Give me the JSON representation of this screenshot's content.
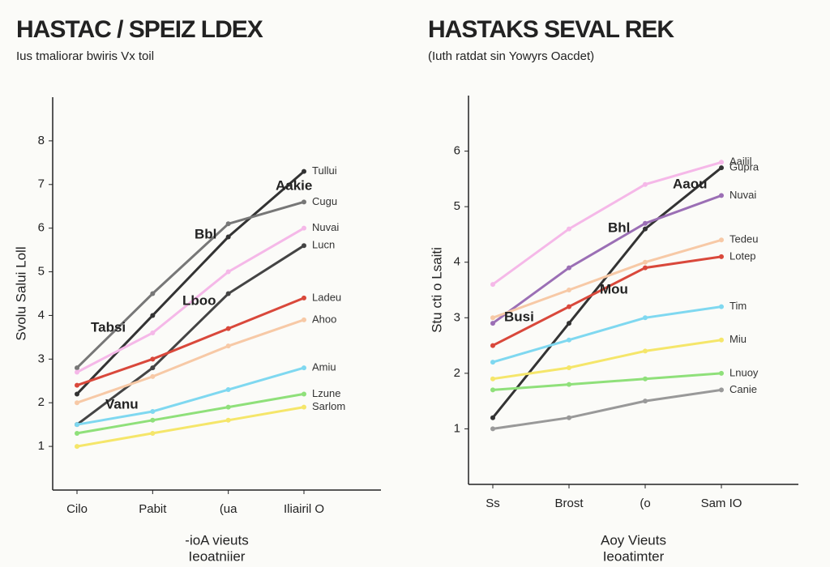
{
  "chart_data": [
    {
      "type": "line",
      "title": "HASTAC / SPEIZ LDEX",
      "subtitle": "Ius tmaliorar bwiris Vx toil",
      "y_label": "Svolu Salui Loll",
      "x_label": "Ieoatniier",
      "legend_text": "-ioA vieuts",
      "categories": [
        "Cilo",
        "Pabit",
        "(ua",
        "Iliairil O"
      ],
      "ylim": [
        0,
        9
      ],
      "yticks": [
        1,
        2,
        3,
        4,
        5,
        6,
        7,
        8
      ],
      "annotations": [
        "Aakie",
        "Bbl",
        "Lboo",
        "Tabsi",
        "Vanu"
      ],
      "series": [
        {
          "name": "Tullui",
          "color": "#333333",
          "values": [
            2.2,
            4.0,
            5.8,
            7.3
          ]
        },
        {
          "name": "Cugu",
          "color": "#777777",
          "values": [
            2.8,
            4.5,
            6.1,
            6.6
          ]
        },
        {
          "name": "Nuvai",
          "color": "#f5b8e8",
          "values": [
            2.7,
            3.6,
            5.0,
            6.0
          ]
        },
        {
          "name": "Lucn",
          "color": "#444444",
          "values": [
            1.5,
            2.8,
            4.5,
            5.6
          ]
        },
        {
          "name": "Ladeu",
          "color": "#d9483b",
          "values": [
            2.4,
            3.0,
            3.7,
            4.4
          ]
        },
        {
          "name": "Ahoo",
          "color": "#f7c9a6",
          "values": [
            2.0,
            2.6,
            3.3,
            3.9
          ]
        },
        {
          "name": "Amiu",
          "color": "#7fd8f0",
          "values": [
            1.5,
            1.8,
            2.3,
            2.8
          ]
        },
        {
          "name": "Lzune",
          "color": "#8fe07a",
          "values": [
            1.3,
            1.6,
            1.9,
            2.2
          ]
        },
        {
          "name": "Sarlom",
          "color": "#f5e66a",
          "values": [
            1.0,
            1.3,
            1.6,
            1.9
          ]
        }
      ]
    },
    {
      "type": "line",
      "title": "HASTAKS SEVAL REK",
      "subtitle": "(Iuth ratdat sin Yowyrs Oacdet)",
      "y_label": "Stu cti o Lsaiti",
      "x_label": "Ieoatimter",
      "legend_text": "Aoy Vieuts",
      "categories": [
        "Ss",
        "Brost",
        "(o",
        "Sam IO"
      ],
      "ylim": [
        0,
        7
      ],
      "yticks": [
        1,
        2,
        3,
        4,
        5,
        6
      ],
      "annotations": [
        "Aaou",
        "Bhl",
        "Mou",
        "Busi"
      ],
      "series": [
        {
          "name": "Aailil",
          "color": "#f5b8e8",
          "values": [
            3.6,
            4.6,
            5.4,
            5.8
          ]
        },
        {
          "name": "Gupra",
          "color": "#333333",
          "values": [
            1.2,
            2.9,
            4.6,
            5.7
          ]
        },
        {
          "name": "Nuvai",
          "color": "#9b6fb5",
          "values": [
            2.9,
            3.9,
            4.7,
            5.2
          ]
        },
        {
          "name": "Tedeu",
          "color": "#f7c9a6",
          "values": [
            3.0,
            3.5,
            4.0,
            4.4
          ]
        },
        {
          "name": "Lotep",
          "color": "#d9483b",
          "values": [
            2.5,
            3.2,
            3.9,
            4.1
          ]
        },
        {
          "name": "Tim",
          "color": "#7fd8f0",
          "values": [
            2.2,
            2.6,
            3.0,
            3.2
          ]
        },
        {
          "name": "Miu",
          "color": "#f5e66a",
          "values": [
            1.9,
            2.1,
            2.4,
            2.6
          ]
        },
        {
          "name": "Lnuoy",
          "color": "#8fe07a",
          "values": [
            1.7,
            1.8,
            1.9,
            2.0
          ]
        },
        {
          "name": "Canie",
          "color": "#999999",
          "values": [
            1.0,
            1.2,
            1.5,
            1.7
          ]
        }
      ]
    }
  ]
}
